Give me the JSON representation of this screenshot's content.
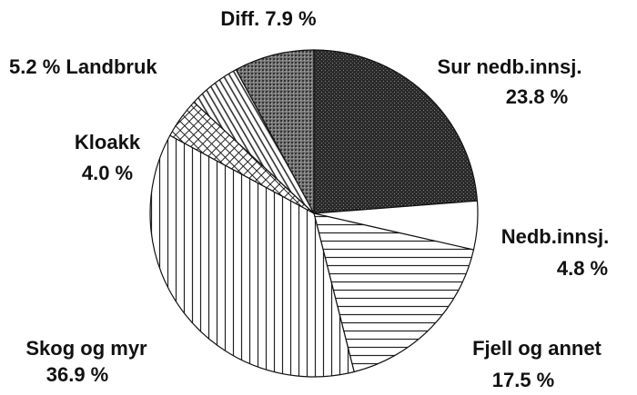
{
  "chart_data": {
    "type": "pie",
    "categories": [
      "Sur nedb.innsj.",
      "Nedb.innsj.",
      "Fjell og annet",
      "Skog og myr",
      "Kloakk",
      "Landbruk",
      "Diff."
    ],
    "values": [
      23.8,
      4.8,
      17.5,
      36.9,
      4.0,
      5.2,
      7.9
    ],
    "value_labels": [
      "23.8 %",
      "4.8 %",
      "17.5 %",
      "36.9 %",
      "4.0 %",
      "5.2 %",
      "7.9 %"
    ]
  }
}
